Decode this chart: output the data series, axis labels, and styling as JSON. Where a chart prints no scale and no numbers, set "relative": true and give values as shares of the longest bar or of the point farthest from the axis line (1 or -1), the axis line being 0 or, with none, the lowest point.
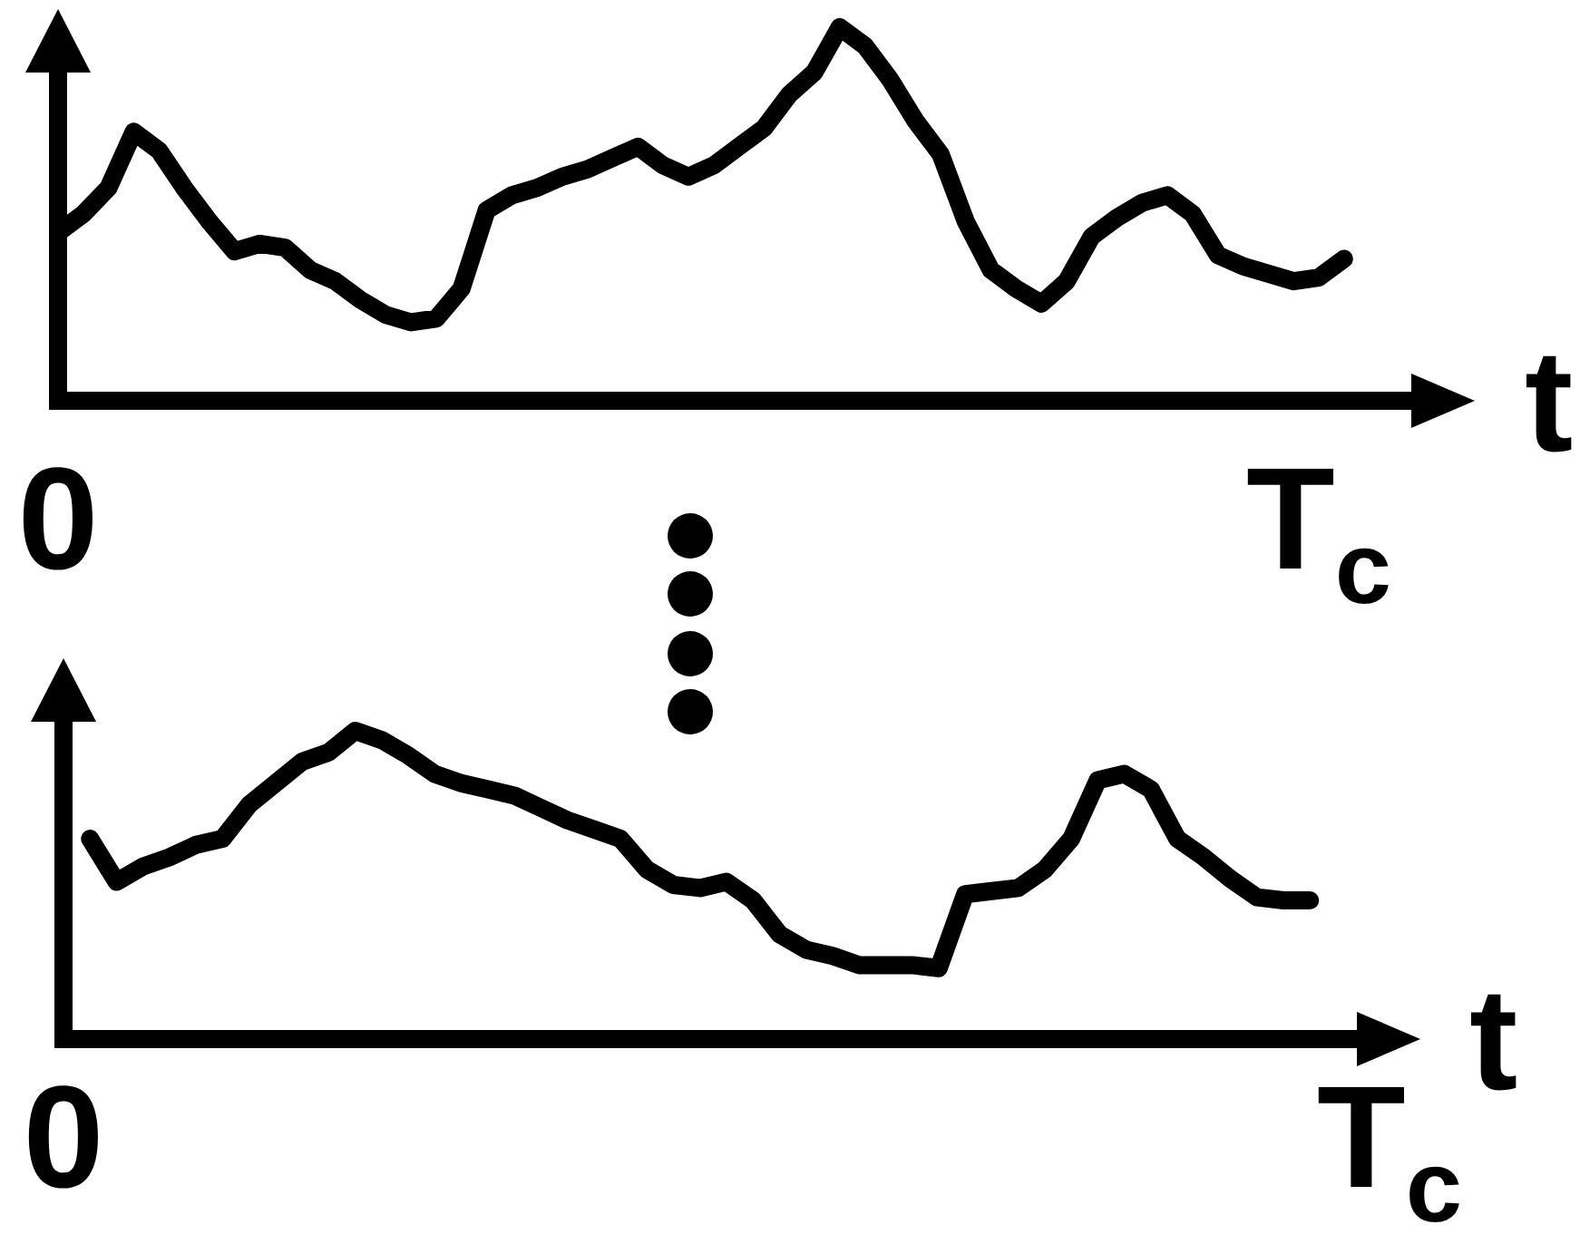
{
  "chart_data": [
    {
      "type": "line",
      "relative": true,
      "xlabel": "t",
      "tick_labels": "x",
      "grid": false,
      "marker": "none",
      "line_style": "solid",
      "color": "#000000",
      "categories": [
        "0",
        null,
        null,
        null,
        null,
        null,
        null,
        null,
        null,
        null,
        null,
        null,
        null,
        null,
        null,
        null,
        null,
        null,
        null,
        null,
        null,
        null,
        null,
        null,
        null,
        null,
        null,
        null,
        null,
        null,
        null,
        null,
        null,
        null,
        null,
        null,
        null,
        null,
        null,
        null,
        null,
        null,
        null,
        null,
        null,
        null,
        null,
        null,
        null,
        null,
        "T$_{c}$",
        null,
        null,
        null,
        null,
        null
      ],
      "values": [
        0.45,
        0.5,
        0.57,
        0.72,
        0.67,
        0.57,
        0.48,
        0.4,
        0.42,
        0.41,
        0.35,
        0.32,
        0.27,
        0.23,
        0.21,
        0.22,
        0.3,
        0.51,
        0.55,
        0.57,
        0.6,
        0.62,
        0.65,
        0.68,
        0.63,
        0.6,
        0.63,
        0.68,
        0.73,
        0.82,
        0.88,
        1,
        0.95,
        0.86,
        0.75,
        0.66,
        0.48,
        0.35,
        0.3,
        0.26,
        0.32,
        0.44,
        0.49,
        0.53,
        0.55,
        0.5,
        0.39,
        0.36,
        0.34,
        0.32,
        0.33,
        0.38,
        null,
        null,
        null,
        null
      ]
    },
    {
      "type": "line",
      "relative": true,
      "xlabel": "t",
      "tick_labels": "x",
      "grid": false,
      "marker": "none",
      "line_style": "solid",
      "color": "#000000",
      "categories": [
        "0",
        null,
        null,
        null,
        null,
        null,
        null,
        null,
        null,
        null,
        null,
        null,
        null,
        null,
        null,
        null,
        null,
        null,
        null,
        null,
        null,
        null,
        null,
        null,
        null,
        null,
        null,
        null,
        null,
        null,
        null,
        null,
        null,
        null,
        null,
        null,
        null,
        null,
        null,
        null,
        null,
        null,
        null,
        null,
        null,
        null,
        null,
        null,
        null,
        null,
        "T$_{c}$"
      ],
      "values": [
        null,
        0.65,
        0.51,
        0.56,
        0.59,
        0.63,
        0.65,
        0.76,
        0.83,
        0.9,
        0.93,
        1,
        0.97,
        0.92,
        0.86,
        0.83,
        0.81,
        0.79,
        0.75,
        0.71,
        0.68,
        0.65,
        0.55,
        0.5,
        0.49,
        0.51,
        0.45,
        0.34,
        0.29,
        0.27,
        0.24,
        0.24,
        0.24,
        0.23,
        0.47,
        0.48,
        0.49,
        0.55,
        0.65,
        0.84,
        0.86,
        0.81,
        0.65,
        0.59,
        0.52,
        0.46,
        0.45,
        0.45,
        null,
        null,
        null
      ]
    }
  ]
}
